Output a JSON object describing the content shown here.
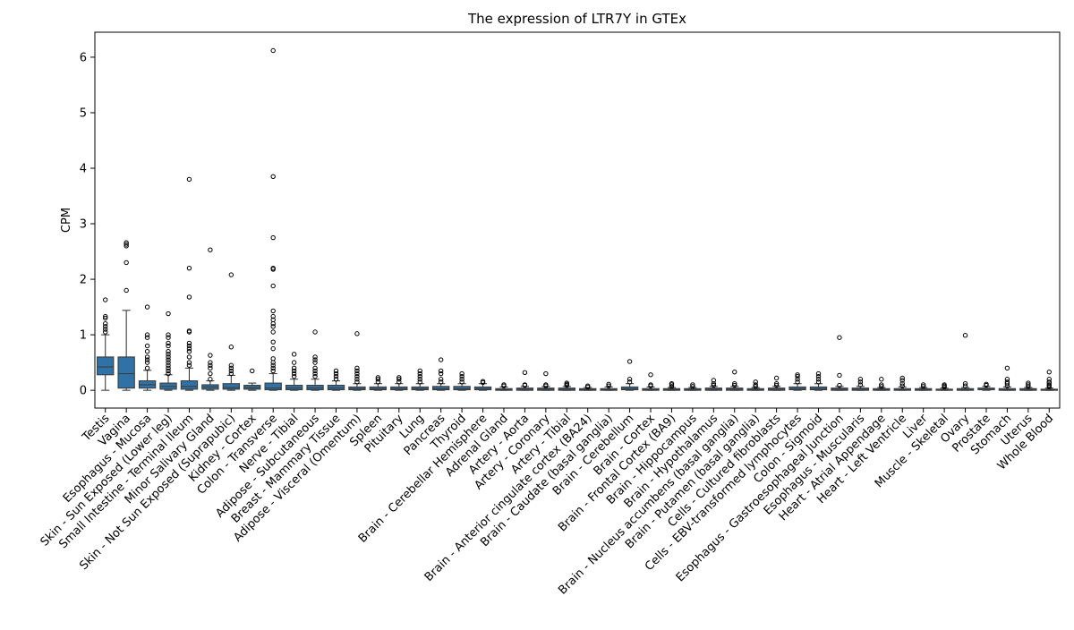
{
  "chart_data": {
    "type": "box",
    "title": "The expression of LTR7Y in GTEx",
    "xlabel": "",
    "ylabel": "CPM",
    "ylim": [
      -0.32,
      6.45
    ],
    "yticks": [
      0,
      1,
      2,
      3,
      4,
      5,
      6
    ],
    "grid": false,
    "box_color": "#2f72a8",
    "categories": [
      "Testis",
      "Vagina",
      "Esophagus - Mucosa",
      "Skin - Sun Exposed (Lower leg)",
      "Small Intestine - Terminal Ileum",
      "Minor Salivary Gland",
      "Skin - Not Sun Exposed (Suprapubic)",
      "Kidney - Cortex",
      "Colon - Transverse",
      "Nerve - Tibial",
      "Adipose - Subcutaneous",
      "Breast - Mammary Tissue",
      "Adipose - Visceral (Omentum)",
      "Spleen",
      "Pituitary",
      "Lung",
      "Pancreas",
      "Thyroid",
      "Brain - Cerebellar Hemisphere",
      "Adrenal Gland",
      "Artery - Aorta",
      "Artery - Coronary",
      "Artery - Tibial",
      "Brain - Anterior cingulate cortex (BA24)",
      "Brain - Caudate (basal ganglia)",
      "Brain - Cerebellum",
      "Brain - Cortex",
      "Brain - Frontal Cortex (BA9)",
      "Brain - Hippocampus",
      "Brain - Hypothalamus",
      "Brain - Nucleus accumbens (basal ganglia)",
      "Brain - Putamen (basal ganglia)",
      "Cells - Cultured fibroblasts",
      "Cells - EBV-transformed lymphocytes",
      "Colon - Sigmoid",
      "Esophagus - Gastroesophageal Junction",
      "Esophagus - Muscularis",
      "Heart - Atrial Appendage",
      "Heart - Left Ventricle",
      "Liver",
      "Muscle - Skeletal",
      "Ovary",
      "Prostate",
      "Stomach",
      "Uterus",
      "Whole Blood"
    ],
    "boxes": [
      {
        "min": 0,
        "q1": 0.28,
        "median": 0.42,
        "q3": 0.6,
        "max": 1.0,
        "outliers": [
          1.05,
          1.1,
          1.15,
          1.2,
          1.3,
          1.33,
          1.63
        ]
      },
      {
        "min": 0,
        "q1": 0.04,
        "median": 0.3,
        "q3": 0.6,
        "max": 1.44,
        "outliers": [
          1.8,
          2.3,
          2.6,
          2.63,
          2.66
        ]
      },
      {
        "min": 0,
        "q1": 0.04,
        "median": 0.1,
        "q3": 0.17,
        "max": 0.36,
        "outliers": [
          0.4,
          0.5,
          0.55,
          0.6,
          0.7,
          0.8,
          0.95,
          1.0,
          1.5
        ]
      },
      {
        "min": 0,
        "q1": 0.02,
        "median": 0.07,
        "q3": 0.13,
        "max": 0.28,
        "outliers": [
          0.3,
          0.35,
          0.4,
          0.45,
          0.5,
          0.55,
          0.6,
          0.65,
          0.7,
          0.8,
          0.85,
          0.95,
          1.0,
          1.38
        ]
      },
      {
        "min": 0,
        "q1": 0.02,
        "median": 0.07,
        "q3": 0.17,
        "max": 0.4,
        "outliers": [
          0.45,
          0.5,
          0.6,
          0.7,
          0.75,
          0.8,
          0.85,
          1.05,
          1.07,
          1.68,
          2.2,
          3.8
        ]
      },
      {
        "min": 0,
        "q1": 0.02,
        "median": 0.06,
        "q3": 0.1,
        "max": 0.17,
        "outliers": [
          0.2,
          0.3,
          0.4,
          0.45,
          0.5,
          0.63,
          2.53
        ]
      },
      {
        "min": 0,
        "q1": 0.02,
        "median": 0.05,
        "q3": 0.12,
        "max": 0.27,
        "outliers": [
          0.3,
          0.35,
          0.4,
          0.45,
          0.78,
          2.08
        ]
      },
      {
        "min": 0,
        "q1": 0.02,
        "median": 0.05,
        "q3": 0.09,
        "max": 0.13,
        "outliers": [
          0.35
        ]
      },
      {
        "min": 0,
        "q1": 0.01,
        "median": 0.04,
        "q3": 0.13,
        "max": 0.3,
        "outliers": [
          0.35,
          0.4,
          0.45,
          0.5,
          0.57,
          0.75,
          0.87,
          1.05,
          1.15,
          1.2,
          1.27,
          1.33,
          1.43,
          1.88,
          2.18,
          2.2,
          2.75,
          3.85,
          6.12
        ]
      },
      {
        "min": 0,
        "q1": 0.01,
        "median": 0.04,
        "q3": 0.09,
        "max": 0.2,
        "outliers": [
          0.25,
          0.3,
          0.35,
          0.4,
          0.5,
          0.65
        ]
      },
      {
        "min": 0,
        "q1": 0.01,
        "median": 0.04,
        "q3": 0.09,
        "max": 0.2,
        "outliers": [
          0.25,
          0.3,
          0.35,
          0.4,
          0.5,
          0.55,
          0.6,
          1.05
        ]
      },
      {
        "min": 0,
        "q1": 0.01,
        "median": 0.04,
        "q3": 0.09,
        "max": 0.17,
        "outliers": [
          0.2,
          0.25,
          0.3,
          0.35
        ]
      },
      {
        "min": 0,
        "q1": 0.01,
        "median": 0.03,
        "q3": 0.06,
        "max": 0.12,
        "outliers": [
          0.15,
          0.2,
          0.25,
          0.3,
          0.35,
          0.4,
          1.02
        ]
      },
      {
        "min": 0,
        "q1": 0.01,
        "median": 0.03,
        "q3": 0.06,
        "max": 0.12,
        "outliers": [
          0.15,
          0.2,
          0.23
        ]
      },
      {
        "min": 0,
        "q1": 0.01,
        "median": 0.03,
        "q3": 0.06,
        "max": 0.12,
        "outliers": [
          0.15,
          0.2,
          0.23
        ]
      },
      {
        "min": 0,
        "q1": 0.01,
        "median": 0.03,
        "q3": 0.06,
        "max": 0.12,
        "outliers": [
          0.15,
          0.2,
          0.25,
          0.3,
          0.35
        ]
      },
      {
        "min": 0,
        "q1": 0.01,
        "median": 0.03,
        "q3": 0.07,
        "max": 0.12,
        "outliers": [
          0.15,
          0.2,
          0.3,
          0.35,
          0.55
        ]
      },
      {
        "min": 0,
        "q1": 0.01,
        "median": 0.03,
        "q3": 0.07,
        "max": 0.12,
        "outliers": [
          0.15,
          0.2,
          0.25,
          0.3
        ]
      },
      {
        "min": 0,
        "q1": 0.01,
        "median": 0.03,
        "q3": 0.06,
        "max": 0.12,
        "outliers": [
          0.14,
          0.16
        ]
      },
      {
        "min": 0,
        "q1": 0.0,
        "median": 0.01,
        "q3": 0.03,
        "max": 0.06,
        "outliers": [
          0.08,
          0.1
        ]
      },
      {
        "min": 0,
        "q1": 0.0,
        "median": 0.02,
        "q3": 0.04,
        "max": 0.07,
        "outliers": [
          0.09,
          0.1,
          0.32
        ]
      },
      {
        "min": 0,
        "q1": 0.0,
        "median": 0.02,
        "q3": 0.04,
        "max": 0.07,
        "outliers": [
          0.08,
          0.1,
          0.3
        ]
      },
      {
        "min": 0,
        "q1": 0.0,
        "median": 0.02,
        "q3": 0.04,
        "max": 0.07,
        "outliers": [
          0.09,
          0.11,
          0.13
        ]
      },
      {
        "min": 0,
        "q1": 0.0,
        "median": 0.01,
        "q3": 0.03,
        "max": 0.05,
        "outliers": [
          0.06,
          0.08
        ]
      },
      {
        "min": 0,
        "q1": 0.0,
        "median": 0.01,
        "q3": 0.03,
        "max": 0.06,
        "outliers": [
          0.08,
          0.11
        ]
      },
      {
        "min": 0,
        "q1": 0.01,
        "median": 0.03,
        "q3": 0.06,
        "max": 0.12,
        "outliers": [
          0.15,
          0.2,
          0.52
        ]
      },
      {
        "min": 0,
        "q1": 0.0,
        "median": 0.01,
        "q3": 0.03,
        "max": 0.06,
        "outliers": [
          0.08,
          0.1,
          0.28
        ]
      },
      {
        "min": 0,
        "q1": 0.0,
        "median": 0.01,
        "q3": 0.03,
        "max": 0.05,
        "outliers": [
          0.07,
          0.1,
          0.12
        ]
      },
      {
        "min": 0,
        "q1": 0.0,
        "median": 0.01,
        "q3": 0.03,
        "max": 0.05,
        "outliers": [
          0.07,
          0.1
        ]
      },
      {
        "min": 0,
        "q1": 0.0,
        "median": 0.02,
        "q3": 0.04,
        "max": 0.07,
        "outliers": [
          0.09,
          0.12,
          0.18
        ]
      },
      {
        "min": 0,
        "q1": 0.0,
        "median": 0.02,
        "q3": 0.04,
        "max": 0.07,
        "outliers": [
          0.09,
          0.12,
          0.33
        ]
      },
      {
        "min": 0,
        "q1": 0.0,
        "median": 0.01,
        "q3": 0.03,
        "max": 0.05,
        "outliers": [
          0.07,
          0.1,
          0.15
        ]
      },
      {
        "min": 0,
        "q1": 0.0,
        "median": 0.02,
        "q3": 0.04,
        "max": 0.07,
        "outliers": [
          0.09,
          0.12,
          0.22
        ]
      },
      {
        "min": 0,
        "q1": 0.01,
        "median": 0.03,
        "q3": 0.06,
        "max": 0.12,
        "outliers": [
          0.15,
          0.2,
          0.25,
          0.28
        ]
      },
      {
        "min": 0,
        "q1": 0.01,
        "median": 0.03,
        "q3": 0.06,
        "max": 0.12,
        "outliers": [
          0.15,
          0.2,
          0.25,
          0.3
        ]
      },
      {
        "min": 0,
        "q1": 0.0,
        "median": 0.02,
        "q3": 0.04,
        "max": 0.07,
        "outliers": [
          0.09,
          0.27,
          0.95
        ]
      },
      {
        "min": 0,
        "q1": 0.0,
        "median": 0.02,
        "q3": 0.04,
        "max": 0.07,
        "outliers": [
          0.1,
          0.15,
          0.2
        ]
      },
      {
        "min": 0,
        "q1": 0.0,
        "median": 0.01,
        "q3": 0.03,
        "max": 0.05,
        "outliers": [
          0.07,
          0.1,
          0.2
        ]
      },
      {
        "min": 0,
        "q1": 0.0,
        "median": 0.01,
        "q3": 0.03,
        "max": 0.06,
        "outliers": [
          0.08,
          0.12,
          0.18,
          0.22
        ]
      },
      {
        "min": 0,
        "q1": 0.0,
        "median": 0.01,
        "q3": 0.03,
        "max": 0.05,
        "outliers": [
          0.07,
          0.1
        ]
      },
      {
        "min": 0,
        "q1": 0.0,
        "median": 0.01,
        "q3": 0.02,
        "max": 0.04,
        "outliers": [
          0.06,
          0.08,
          0.1
        ]
      },
      {
        "min": 0,
        "q1": 0.0,
        "median": 0.01,
        "q3": 0.03,
        "max": 0.05,
        "outliers": [
          0.08,
          0.12,
          0.99
        ]
      },
      {
        "min": 0,
        "q1": 0.01,
        "median": 0.02,
        "q3": 0.04,
        "max": 0.07,
        "outliers": [
          0.09,
          0.11
        ]
      },
      {
        "min": 0,
        "q1": 0.0,
        "median": 0.01,
        "q3": 0.03,
        "max": 0.06,
        "outliers": [
          0.08,
          0.12,
          0.15,
          0.2,
          0.4
        ]
      },
      {
        "min": 0,
        "q1": 0.0,
        "median": 0.01,
        "q3": 0.03,
        "max": 0.05,
        "outliers": [
          0.07,
          0.1,
          0.13
        ]
      },
      {
        "min": 0,
        "q1": 0.0,
        "median": 0.01,
        "q3": 0.02,
        "max": 0.04,
        "outliers": [
          0.06,
          0.08,
          0.1,
          0.13,
          0.15,
          0.2,
          0.33
        ]
      }
    ]
  }
}
